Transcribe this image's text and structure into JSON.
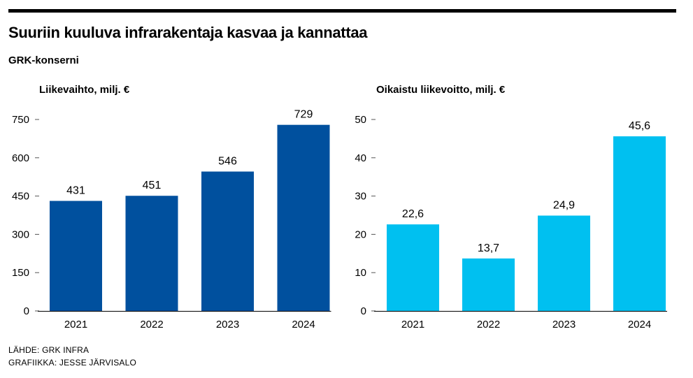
{
  "header": {
    "title": "Suuriin kuuluva infrarakentaja kasvaa ja kannattaa",
    "subtitle": "GRK-konserni"
  },
  "footer": {
    "source": "LÄHDE: GRK INFRA",
    "credit": "GRAFIIKKA: JESSE JÄRVISALO"
  },
  "chart_data": [
    {
      "type": "bar",
      "title": "Liikevaihto, milj. €",
      "categories": [
        "2021",
        "2022",
        "2023",
        "2024"
      ],
      "values": [
        431,
        451,
        546,
        729
      ],
      "value_labels": [
        "431",
        "451",
        "546",
        "729"
      ],
      "ylim": [
        0,
        750
      ],
      "yticks": [
        0,
        150,
        300,
        450,
        600,
        750
      ],
      "color": "#00509e",
      "grid": false,
      "legend": "none"
    },
    {
      "type": "bar",
      "title": "Oikaistu liikevoitto, milj. €",
      "categories": [
        "2021",
        "2022",
        "2023",
        "2024"
      ],
      "values": [
        22.6,
        13.7,
        24.9,
        45.6
      ],
      "value_labels": [
        "22,6",
        "13,7",
        "24,9",
        "45,6"
      ],
      "ylim": [
        0,
        50
      ],
      "yticks": [
        0,
        10,
        20,
        30,
        40,
        50
      ],
      "color": "#00c0f0",
      "grid": false,
      "legend": "none"
    }
  ]
}
